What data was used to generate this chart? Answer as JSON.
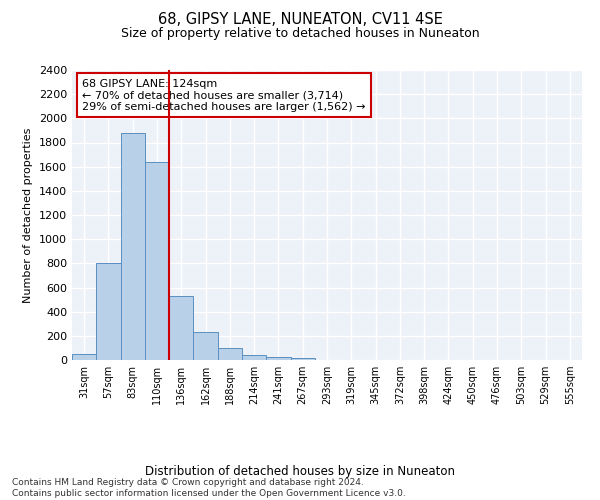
{
  "title": "68, GIPSY LANE, NUNEATON, CV11 4SE",
  "subtitle": "Size of property relative to detached houses in Nuneaton",
  "xlabel": "Distribution of detached houses by size in Nuneaton",
  "ylabel": "Number of detached properties",
  "bar_color": "#b8d0e8",
  "bar_edge_color": "#5a8fc0",
  "annotation_box_color": "#cc0000",
  "vline_color": "#cc0000",
  "annotation_text": "68 GIPSY LANE: 124sqm\n← 70% of detached houses are smaller (3,714)\n29% of semi-detached houses are larger (1,562) →",
  "categories": [
    "31sqm",
    "57sqm",
    "83sqm",
    "110sqm",
    "136sqm",
    "162sqm",
    "188sqm",
    "214sqm",
    "241sqm",
    "267sqm",
    "293sqm",
    "319sqm",
    "345sqm",
    "372sqm",
    "398sqm",
    "424sqm",
    "450sqm",
    "476sqm",
    "503sqm",
    "529sqm",
    "555sqm"
  ],
  "values": [
    50,
    800,
    1880,
    1640,
    530,
    230,
    100,
    45,
    25,
    15,
    0,
    0,
    0,
    0,
    0,
    0,
    0,
    0,
    0,
    0,
    0
  ],
  "vline_pos": 3.5,
  "ylim": [
    0,
    2400
  ],
  "yticks": [
    0,
    200,
    400,
    600,
    800,
    1000,
    1200,
    1400,
    1600,
    1800,
    2000,
    2200,
    2400
  ],
  "footer_text": "Contains HM Land Registry data © Crown copyright and database right 2024.\nContains public sector information licensed under the Open Government Licence v3.0.",
  "background_color": "#edf2f9",
  "grid_color": "#ffffff",
  "fig_bg": "#ffffff"
}
